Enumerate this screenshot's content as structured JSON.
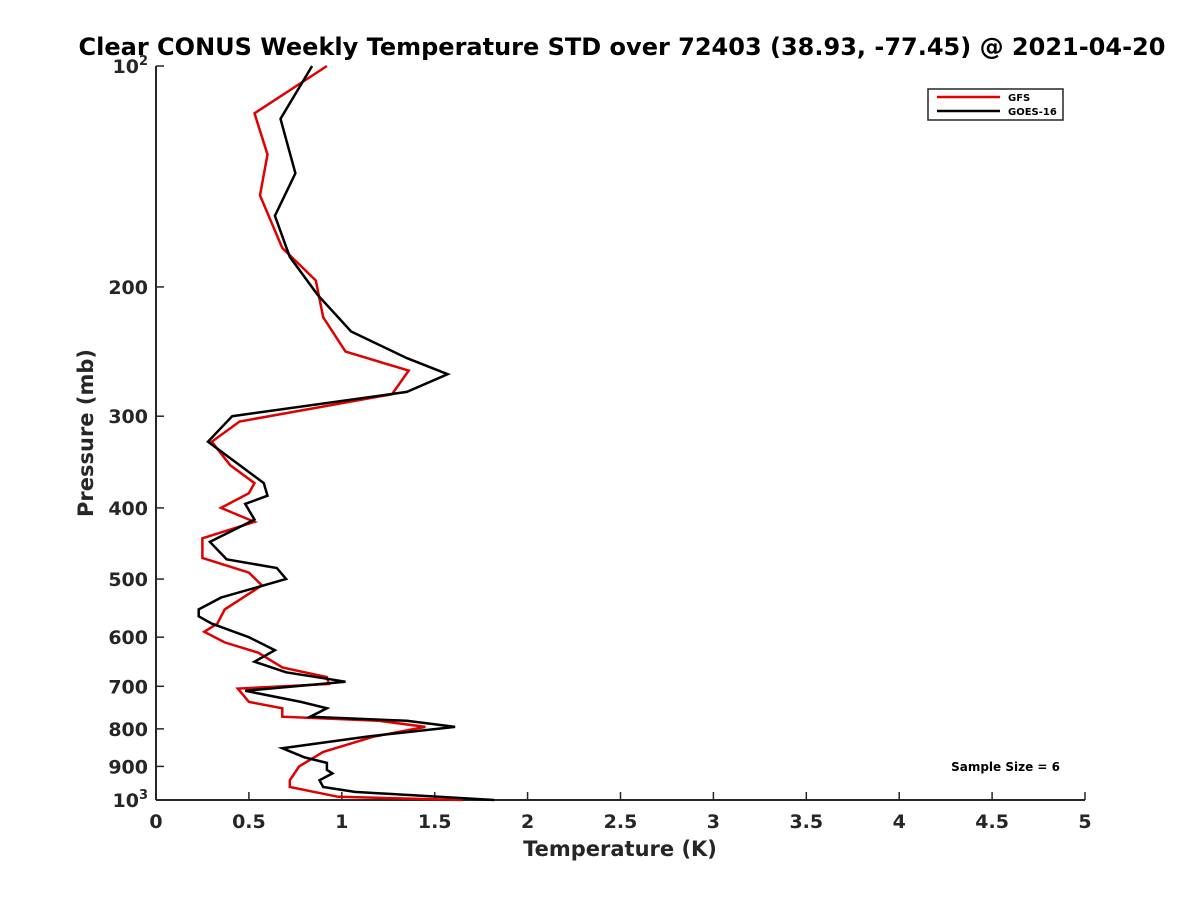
{
  "chart_data": {
    "type": "line",
    "title": "Clear CONUS Weekly Temperature STD over 72403 (38.93, -77.45) @ 2021-04-20",
    "xlabel": "Temperature (K)",
    "ylabel": "Pressure (mb)",
    "xlim": [
      0,
      5
    ],
    "ylim": [
      1000,
      100
    ],
    "yscale": "log",
    "y_reversed": true,
    "grid": false,
    "legend_position": "top-right",
    "x_ticks": [
      "0",
      "0.5",
      "1",
      "1.5",
      "2",
      "2.5",
      "3",
      "3.5",
      "4",
      "4.5",
      "5"
    ],
    "y_ticks": [
      {
        "value": 100,
        "base": "10",
        "exp": "2"
      },
      {
        "value": 200,
        "label": "200"
      },
      {
        "value": 300,
        "label": "300"
      },
      {
        "value": 400,
        "label": "400"
      },
      {
        "value": 500,
        "label": "500"
      },
      {
        "value": 600,
        "label": "600"
      },
      {
        "value": 700,
        "label": "700"
      },
      {
        "value": 800,
        "label": "800"
      },
      {
        "value": 900,
        "label": "900"
      },
      {
        "value": 1000,
        "base": "10",
        "exp": "3"
      }
    ],
    "annotation": "Sample Size = 6",
    "series": [
      {
        "name": "GFS",
        "color": "#e00000",
        "points": [
          [
            0.92,
            100
          ],
          [
            0.53,
            116
          ],
          [
            0.6,
            132
          ],
          [
            0.56,
            150
          ],
          [
            0.68,
            177
          ],
          [
            0.86,
            196
          ],
          [
            0.9,
            220
          ],
          [
            1.02,
            245
          ],
          [
            1.36,
            260
          ],
          [
            1.27,
            280
          ],
          [
            0.45,
            305
          ],
          [
            0.3,
            325
          ],
          [
            0.4,
            350
          ],
          [
            0.53,
            370
          ],
          [
            0.5,
            382
          ],
          [
            0.35,
            400
          ],
          [
            0.53,
            418
          ],
          [
            0.25,
            440
          ],
          [
            0.25,
            468
          ],
          [
            0.5,
            490
          ],
          [
            0.57,
            510
          ],
          [
            0.37,
            550
          ],
          [
            0.33,
            575
          ],
          [
            0.26,
            590
          ],
          [
            0.37,
            610
          ],
          [
            0.55,
            630
          ],
          [
            0.68,
            660
          ],
          [
            0.92,
            680
          ],
          [
            0.93,
            695
          ],
          [
            0.44,
            705
          ],
          [
            0.5,
            735
          ],
          [
            0.68,
            750
          ],
          [
            0.68,
            770
          ],
          [
            1.2,
            780
          ],
          [
            1.45,
            795
          ],
          [
            1.17,
            820
          ],
          [
            0.9,
            860
          ],
          [
            0.77,
            900
          ],
          [
            0.72,
            940
          ],
          [
            0.72,
            960
          ],
          [
            0.98,
            990
          ],
          [
            1.65,
            1000
          ]
        ]
      },
      {
        "name": "GOES-16",
        "color": "#000000",
        "points": [
          [
            0.84,
            100
          ],
          [
            0.67,
            118
          ],
          [
            0.75,
            140
          ],
          [
            0.64,
            160
          ],
          [
            0.72,
            182
          ],
          [
            0.87,
            205
          ],
          [
            1.05,
            230
          ],
          [
            1.35,
            250
          ],
          [
            1.57,
            263
          ],
          [
            1.35,
            278
          ],
          [
            0.41,
            300
          ],
          [
            0.28,
            325
          ],
          [
            0.58,
            370
          ],
          [
            0.6,
            385
          ],
          [
            0.48,
            395
          ],
          [
            0.53,
            415
          ],
          [
            0.29,
            445
          ],
          [
            0.38,
            470
          ],
          [
            0.65,
            483
          ],
          [
            0.7,
            500
          ],
          [
            0.35,
            530
          ],
          [
            0.23,
            550
          ],
          [
            0.23,
            562
          ],
          [
            0.3,
            575
          ],
          [
            0.5,
            600
          ],
          [
            0.64,
            625
          ],
          [
            0.53,
            648
          ],
          [
            0.7,
            670
          ],
          [
            1.02,
            690
          ],
          [
            0.48,
            710
          ],
          [
            0.78,
            735
          ],
          [
            0.92,
            750
          ],
          [
            0.83,
            770
          ],
          [
            1.35,
            780
          ],
          [
            1.61,
            795
          ],
          [
            1.13,
            820
          ],
          [
            0.68,
            850
          ],
          [
            0.8,
            875
          ],
          [
            0.92,
            890
          ],
          [
            0.92,
            910
          ],
          [
            0.95,
            920
          ],
          [
            0.88,
            940
          ],
          [
            0.9,
            960
          ],
          [
            1.07,
            975
          ],
          [
            1.82,
            1000
          ]
        ]
      }
    ]
  }
}
